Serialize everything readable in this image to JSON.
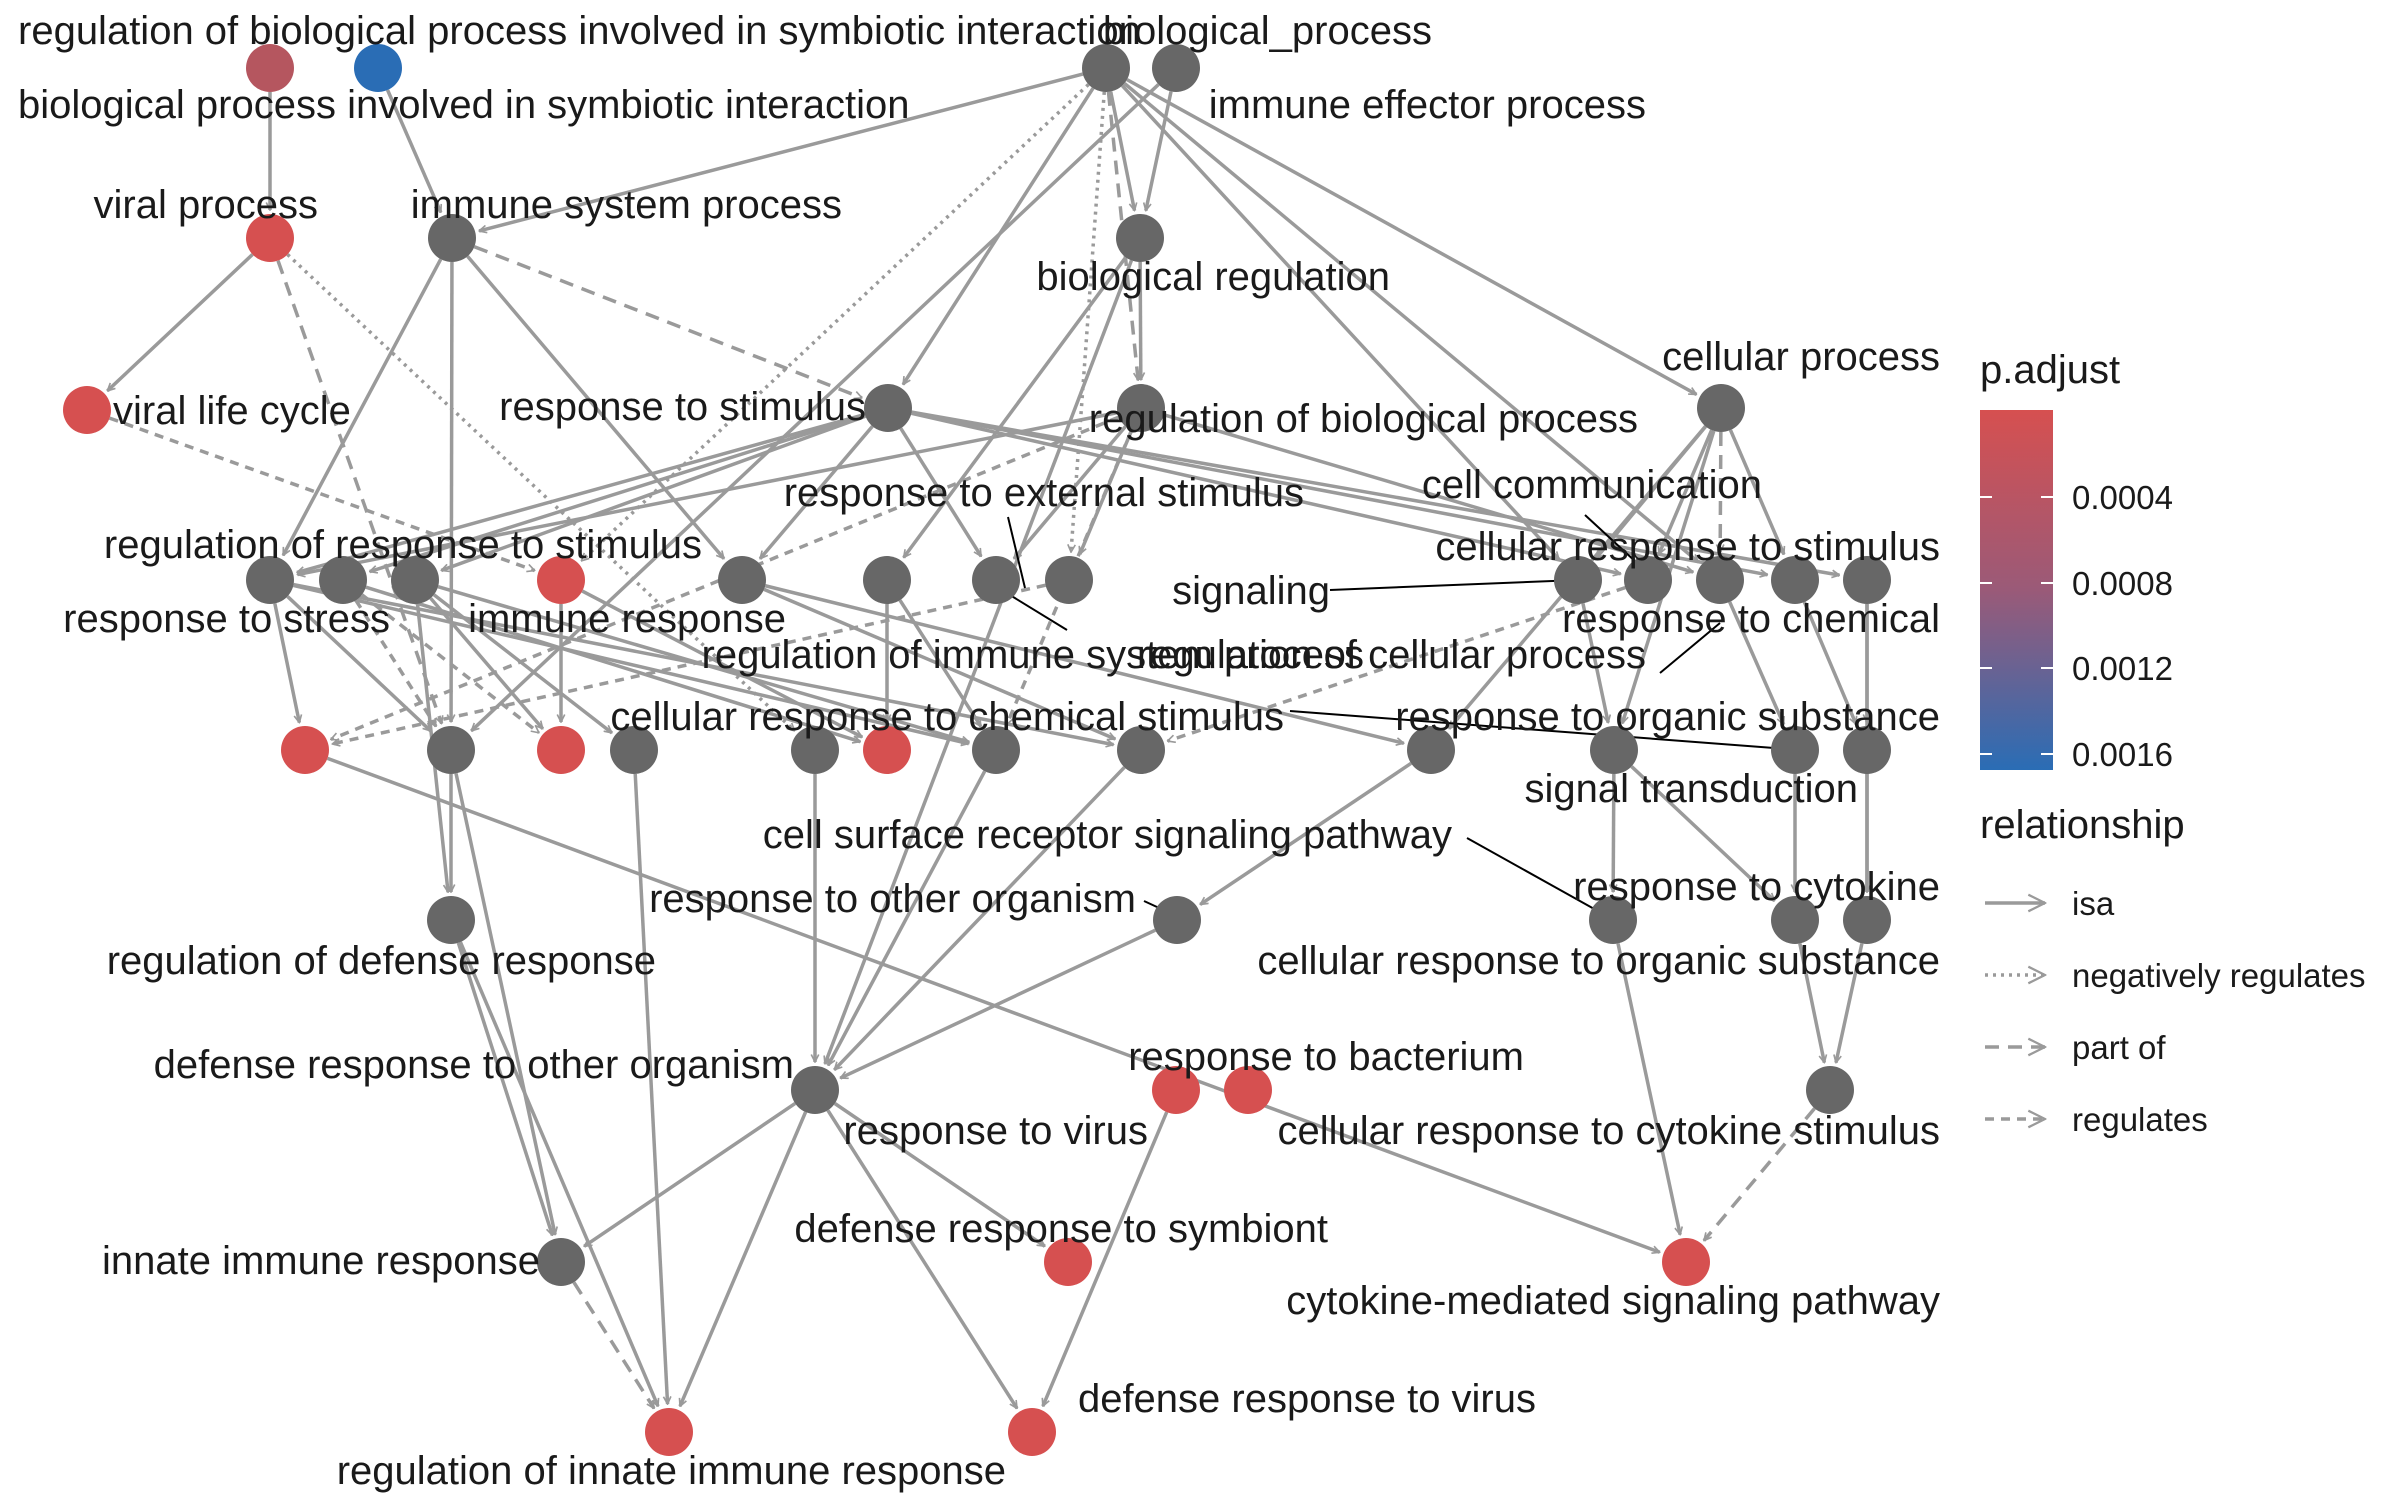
{
  "legend": {
    "color_title": "p.adjust",
    "color_ticks": [
      "0.0004",
      "0.0008",
      "0.0012",
      "0.0016"
    ],
    "color_low": "#d05050",
    "color_high": "#2a6db5",
    "relationship_title": "relationship",
    "relationships": [
      {
        "key": "isa",
        "label": "isa"
      },
      {
        "key": "neg",
        "label": "negatively regulates"
      },
      {
        "key": "part",
        "label": "part of"
      },
      {
        "key": "reg",
        "label": "regulates"
      }
    ]
  },
  "colors": {
    "significant": "#d65050",
    "significant_mid": "#b5565f",
    "significant_high": "#2a6db5",
    "neutral": "#676767",
    "edge": "#9a9a9a"
  },
  "labels": {
    "regulation_symbiotic": "regulation of biological process involved in symbiotic interaction",
    "biological_process": "biological_process",
    "biological_symbiotic": "biological process involved in symbiotic interaction",
    "immune_effector": "immune effector process",
    "viral_process": "viral process",
    "immune_system_process": "immune system process",
    "biological_regulation": "biological regulation",
    "viral_life_cycle": "viral life cycle",
    "response_to_stimulus": "response to stimulus",
    "regulation_biological_process": "regulation of biological process",
    "cellular_process": "cellular process",
    "response_external": "response to external stimulus",
    "cell_communication": "cell communication",
    "regulation_response_stimulus": "regulation of response to stimulus",
    "cellular_response_stimulus": "cellular response to stimulus",
    "signaling": "signaling",
    "response_to_stress": "response to stress",
    "immune_response": "immune response",
    "response_to_chemical": "response to chemical",
    "regulation_immune_system": "regulation of immune system process",
    "regulation_cellular_process": "regulation of cellular process",
    "cellular_response_chemical": "cellular response to chemical stimulus",
    "response_organic_substance": "response to organic substance",
    "signal_transduction": "signal transduction",
    "cell_surface_receptor": "cell surface receptor signaling pathway",
    "response_to_cytokine": "response to cytokine",
    "response_other_organism": "response to other organism",
    "regulation_defense": "regulation of defense response",
    "cellular_response_organic": "cellular response to organic substance",
    "defense_other_organism": "defense response to other organism",
    "response_to_bacterium": "response to bacterium",
    "response_to_virus": "response to virus",
    "cellular_response_cytokine": "cellular response to cytokine stimulus",
    "defense_symbiont": "defense response to symbiont",
    "innate_immune": "innate immune response",
    "cytokine_mediated": "cytokine-mediated signaling pathway",
    "defense_virus": "defense response to virus",
    "regulation_innate": "regulation of innate immune response"
  }
}
